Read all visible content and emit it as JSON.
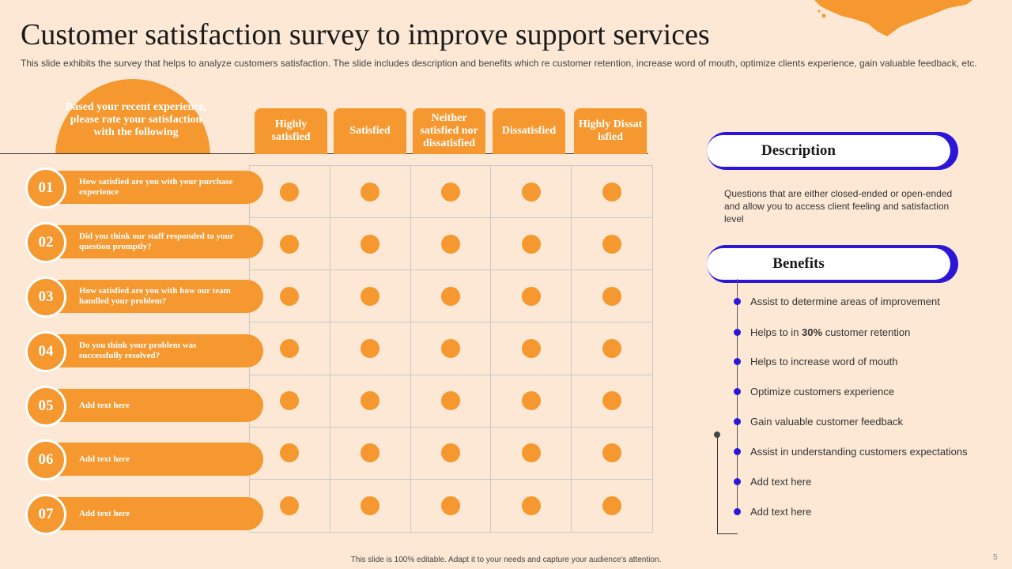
{
  "title": "Customer satisfaction survey to improve support services",
  "subtitle": "This slide exhibits the survey that helps to analyze  customers satisfaction. The slide includes description and benefits which re customer retention, increase word of mouth, optimize clients experience, gain valuable feedback, etc.",
  "prompt": "Based your recent experience, please rate your satisfaction with the following",
  "columns": [
    "Highly satisfied",
    "Satisfied",
    "Neither satisfied nor dissatisfied",
    "Dissatisfied",
    "Highly Dissat isfied"
  ],
  "questions": [
    {
      "num": "01",
      "text": "How satisfied are you with your purchase experience"
    },
    {
      "num": "02",
      "text": "Did you think our staff responded to your question promptly?"
    },
    {
      "num": "03",
      "text": "How satisfied are you with how our team handled your problem?"
    },
    {
      "num": "04",
      "text": "Do you think your problem was successfully resolved?"
    },
    {
      "num": "05",
      "text": "Add text here"
    },
    {
      "num": "06",
      "text": "Add text here"
    },
    {
      "num": "07",
      "text": "Add text here"
    }
  ],
  "description": {
    "heading": "Description",
    "text": "Questions that are either closed-ended or open-ended and allow you to access client feeling and satisfaction level"
  },
  "benefits": {
    "heading": "Benefits",
    "items": [
      {
        "pre": "Assist to determine areas of improvement",
        "bold": "",
        "post": ""
      },
      {
        "pre": "Helps to in ",
        "bold": "30%",
        "post": " customer retention"
      },
      {
        "pre": "Helps to increase word of mouth",
        "bold": "",
        "post": ""
      },
      {
        "pre": "Optimize customers experience",
        "bold": "",
        "post": ""
      },
      {
        "pre": "Gain valuable  customer feedback",
        "bold": "",
        "post": ""
      },
      {
        "pre": "Assist in understanding  customers expectations",
        "bold": "",
        "post": ""
      },
      {
        "pre": "Add text here",
        "bold": "",
        "post": ""
      },
      {
        "pre": "Add text here",
        "bold": "",
        "post": ""
      }
    ]
  },
  "footer": "This slide is 100% editable.  Adapt it to your needs and capture your audience's attention.",
  "page_number": "5",
  "colors": {
    "orange": "#f5982f",
    "blue": "#2c16d8",
    "background": "#fce8d5"
  }
}
